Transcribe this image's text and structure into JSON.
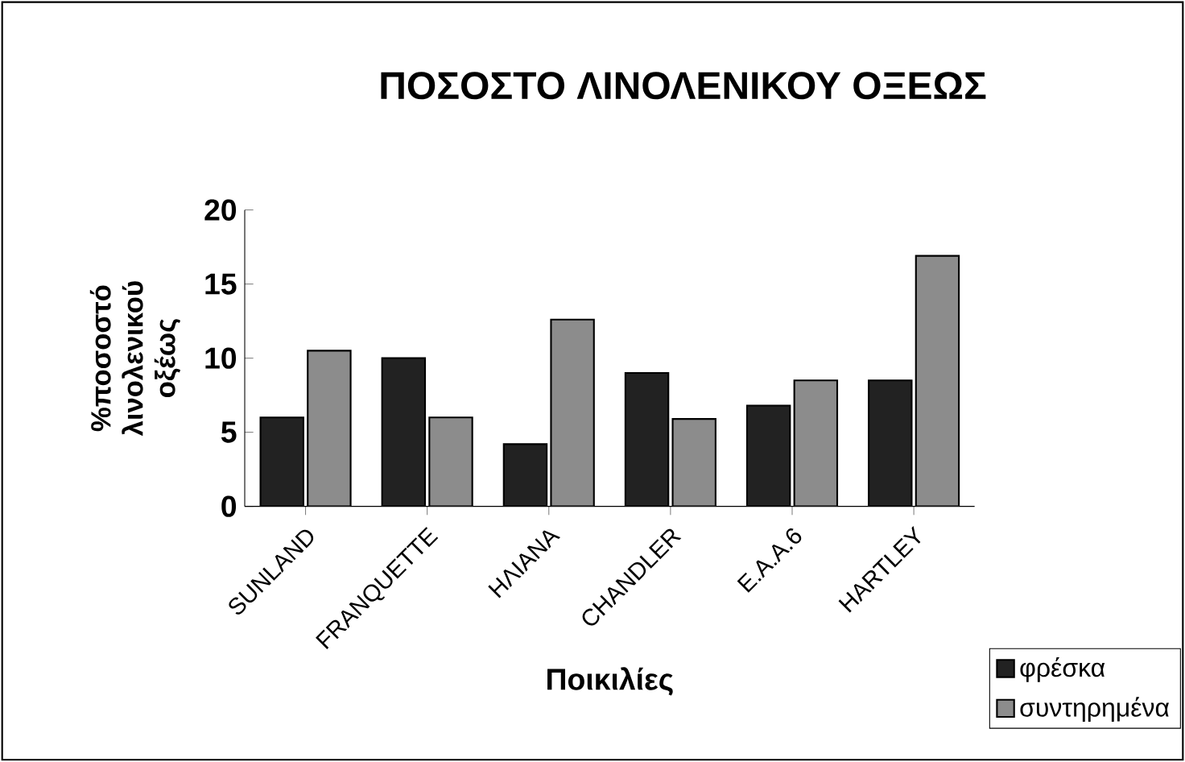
{
  "chart_data": {
    "type": "bar",
    "title": "ΠΟΣΟΣΤΟ ΛΙΝΟΛΕΝΙΚΟΥ ΟΞΕΩΣ",
    "xlabel": "Ποικιλίες",
    "ylabel": "%ποσοστό λινολενικού οξέως",
    "categories": [
      "SUNLAND",
      "FRANQUETTE",
      "ΗΛΙΑΝΑ",
      "CHANDLER",
      "Ε.Α.Α.6",
      "HARTLEY"
    ],
    "series": [
      {
        "name": "φρέσκα",
        "color": "#222222",
        "values": [
          6.0,
          10.0,
          4.2,
          9.0,
          6.8,
          8.5
        ]
      },
      {
        "name": "συντηρημένα",
        "color": "#8c8c8c",
        "values": [
          10.5,
          6.0,
          12.6,
          5.9,
          8.5,
          16.9
        ]
      }
    ],
    "ylim": [
      0,
      20
    ],
    "yticks": [
      0,
      5,
      10,
      15,
      20
    ],
    "grid": false,
    "legend": "bottom right"
  }
}
